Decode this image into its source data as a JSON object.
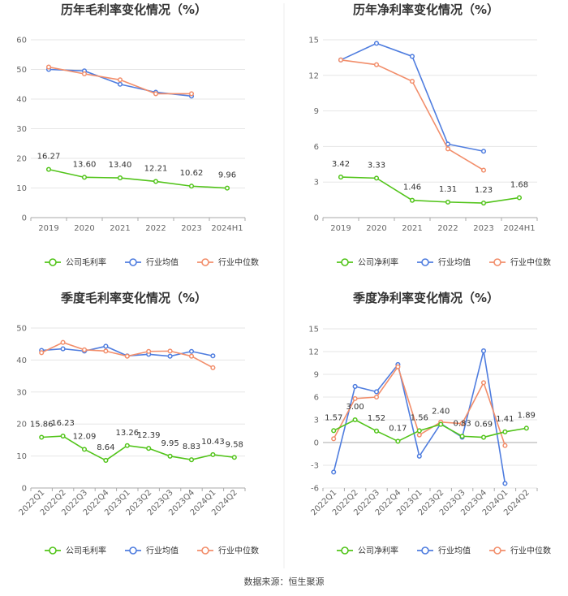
{
  "colors": {
    "company": "#52c41a",
    "avg": "#4f7ddf",
    "median": "#f28e6b",
    "grid": "#e6e6e6",
    "axis": "#aaaaaa"
  },
  "source": "数据来源：恒生聚源",
  "chart_data": [
    {
      "type": "line",
      "title": "历年毛利率变化情况（%）",
      "categories": [
        "2019",
        "2020",
        "2021",
        "2022",
        "2023",
        "2024H1"
      ],
      "ylim": [
        0,
        60
      ],
      "yticks": [
        0,
        10,
        20,
        30,
        40,
        50,
        60
      ],
      "rotate_x": false,
      "series": [
        {
          "name": "公司毛利率",
          "key": "company",
          "labels": true,
          "values": [
            16.27,
            13.6,
            13.4,
            12.21,
            10.62,
            9.96
          ]
        },
        {
          "name": "行业均值",
          "key": "avg",
          "labels": false,
          "values": [
            50.0,
            49.5,
            45.0,
            42.3,
            41.0,
            null
          ]
        },
        {
          "name": "行业中位数",
          "key": "median",
          "labels": false,
          "values": [
            50.8,
            48.5,
            46.5,
            41.8,
            41.8,
            null
          ]
        }
      ],
      "value_labels": [
        "16.27",
        "13.60",
        "13.40",
        "12.21",
        "10.62",
        "9.96"
      ]
    },
    {
      "type": "line",
      "title": "历年净利率变化情况（%）",
      "categories": [
        "2019",
        "2020",
        "2021",
        "2022",
        "2023",
        "2024H1"
      ],
      "ylim": [
        0,
        15
      ],
      "yticks": [
        0,
        3,
        6,
        9,
        12,
        15
      ],
      "rotate_x": false,
      "series": [
        {
          "name": "公司净利率",
          "key": "company",
          "labels": true,
          "values": [
            3.42,
            3.33,
            1.46,
            1.31,
            1.23,
            1.68
          ]
        },
        {
          "name": "行业均值",
          "key": "avg",
          "labels": false,
          "values": [
            13.3,
            14.7,
            13.6,
            6.2,
            5.6,
            null
          ]
        },
        {
          "name": "行业中位数",
          "key": "median",
          "labels": false,
          "values": [
            13.3,
            12.9,
            11.5,
            5.8,
            4.0,
            null
          ]
        }
      ],
      "value_labels": [
        "3.42",
        "3.33",
        "1.46",
        "1.31",
        "1.23",
        "1.68"
      ]
    },
    {
      "type": "line",
      "title": "季度毛利率变化情况（%）",
      "categories": [
        "2022Q1",
        "2022Q2",
        "2022Q3",
        "2022Q4",
        "2023Q1",
        "2023Q2",
        "2023Q3",
        "2023Q4",
        "2024Q1",
        "2024Q2"
      ],
      "ylim": [
        0,
        50
      ],
      "yticks": [
        0,
        10,
        20,
        30,
        40,
        50
      ],
      "rotate_x": true,
      "series": [
        {
          "name": "公司毛利率",
          "key": "company",
          "labels": true,
          "values": [
            15.86,
            16.23,
            12.09,
            8.64,
            13.26,
            12.39,
            9.95,
            8.83,
            10.43,
            9.58
          ]
        },
        {
          "name": "行业均值",
          "key": "avg",
          "labels": false,
          "values": [
            43.0,
            43.5,
            42.8,
            44.3,
            41.3,
            41.8,
            41.2,
            42.7,
            41.3,
            null
          ]
        },
        {
          "name": "行业中位数",
          "key": "median",
          "labels": false,
          "values": [
            42.3,
            45.5,
            43.2,
            42.8,
            41.2,
            42.7,
            42.8,
            41.2,
            37.6,
            null
          ]
        }
      ],
      "value_labels": [
        "15.86",
        "16.23",
        "12.09",
        "8.64",
        "13.26",
        "12.39",
        "9.95",
        "8.83",
        "10.43",
        "9.58"
      ]
    },
    {
      "type": "line",
      "title": "季度净利率变化情况（%）",
      "categories": [
        "2022Q1",
        "2022Q2",
        "2022Q3",
        "2022Q4",
        "2023Q1",
        "2023Q2",
        "2023Q3",
        "2023Q4",
        "2024Q1",
        "2024Q2"
      ],
      "ylim": [
        -6,
        15
      ],
      "yticks": [
        -6,
        -3,
        0,
        3,
        6,
        9,
        12,
        15
      ],
      "rotate_x": true,
      "series": [
        {
          "name": "公司净利率",
          "key": "company",
          "labels": true,
          "values": [
            1.57,
            3.0,
            1.52,
            0.17,
            1.56,
            2.4,
            0.83,
            0.69,
            1.41,
            1.89
          ]
        },
        {
          "name": "行业均值",
          "key": "avg",
          "labels": false,
          "values": [
            -3.9,
            7.4,
            6.7,
            10.3,
            -1.8,
            2.5,
            0.7,
            12.1,
            -5.4,
            null
          ]
        },
        {
          "name": "行业中位数",
          "key": "median",
          "labels": false,
          "values": [
            0.5,
            5.8,
            6.0,
            10.0,
            1.0,
            2.7,
            2.5,
            7.9,
            -0.4,
            null
          ]
        }
      ],
      "value_labels": [
        "1.57",
        "3.00",
        "1.52",
        "0.17",
        "1.56",
        "2.40",
        "0.83",
        "0.69",
        "1.41",
        "1.89"
      ]
    }
  ]
}
